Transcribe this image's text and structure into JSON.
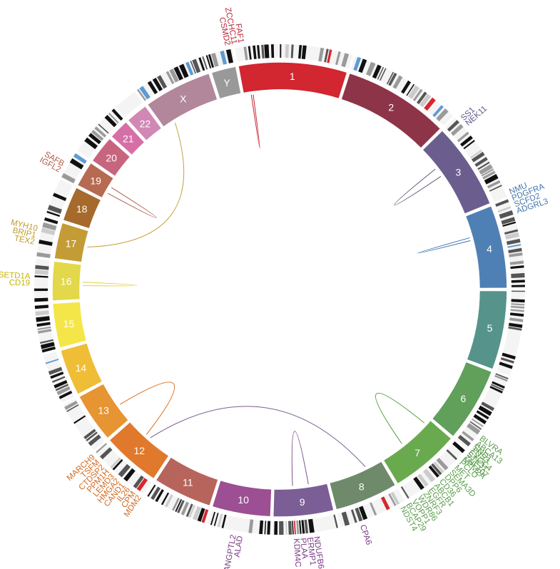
{
  "chromosomes": [
    {
      "name": "1",
      "color": "#d22630",
      "size": 248
    },
    {
      "name": "2",
      "color": "#8e3448",
      "size": 242
    },
    {
      "name": "3",
      "color": "#6b5e8f",
      "size": 198
    },
    {
      "name": "4",
      "color": "#4f80b5",
      "size": 190
    },
    {
      "name": "5",
      "color": "#56948b",
      "size": 181
    },
    {
      "name": "6",
      "color": "#60a05a",
      "size": 171
    },
    {
      "name": "7",
      "color": "#6aaa4f",
      "size": 159
    },
    {
      "name": "8",
      "color": "#6e8a6b",
      "size": 145
    },
    {
      "name": "9",
      "color": "#7c5e96",
      "size": 138
    },
    {
      "name": "10",
      "color": "#9c4f92",
      "size": 134
    },
    {
      "name": "11",
      "color": "#b7655c",
      "size": 135
    },
    {
      "name": "12",
      "color": "#e0792c",
      "size": 133
    },
    {
      "name": "13",
      "color": "#e79433",
      "size": 114
    },
    {
      "name": "14",
      "color": "#efbe36",
      "size": 107
    },
    {
      "name": "15",
      "color": "#f4e649",
      "size": 102
    },
    {
      "name": "16",
      "color": "#e2d84a",
      "size": 90
    },
    {
      "name": "17",
      "color": "#c49c36",
      "size": 83
    },
    {
      "name": "18",
      "color": "#a56a2c",
      "size": 80
    },
    {
      "name": "19",
      "color": "#b66a52",
      "size": 59
    },
    {
      "name": "20",
      "color": "#c8657e",
      "size": 64
    },
    {
      "name": "21",
      "color": "#d76fa7",
      "size": 47
    },
    {
      "name": "22",
      "color": "#d188b4",
      "size": 51
    },
    {
      "name": "X",
      "color": "#b2879b",
      "size": 156
    },
    {
      "name": "Y",
      "color": "#999999",
      "size": 57
    }
  ],
  "gene_labels": [
    {
      "chr": "1",
      "pos": 0.0,
      "color": "#b82a38",
      "genes": [
        "CSMD2",
        "ZCCHC11",
        "FAF1"
      ]
    },
    {
      "chr": "3",
      "pos": 0.1,
      "color": "#5e5789",
      "genes": [
        "SS1",
        "NEK11"
      ]
    },
    {
      "chr": "4",
      "pos": 0.05,
      "color": "#4375ab",
      "genes": [
        "NMU",
        "PDGFRA",
        "SCFD2",
        "ADGRL3"
      ]
    },
    {
      "chr": "6",
      "pos": 0.96,
      "color": "#5a9c4b",
      "genes": [
        "BLVRA",
        "ABCA13",
        "TNS3",
        "STK31",
        "NPM2A"
      ]
    },
    {
      "chr": "7",
      "pos": 0.5,
      "color": "#5a9c4b",
      "genes": [
        "SND1",
        "EXOC4",
        "ZNF107",
        "PCLO",
        "MET",
        "SEMA3D",
        "DPP6",
        "CD36",
        "ABCB1",
        "EGFR",
        "ZNRF3",
        "WDR86",
        "VOPP1",
        "BCAP29",
        "NDST4"
      ]
    },
    {
      "chr": "8",
      "pos": 0.7,
      "color": "#7a3c86",
      "genes": [
        "CPA6"
      ]
    },
    {
      "chr": "9",
      "pos": 0.5,
      "color": "#7a3c86",
      "genes": [
        "NDUFB6",
        "ERMP1",
        "PLAA",
        "KDM4C"
      ]
    },
    {
      "chr": "10",
      "pos": 0.5,
      "color": "#7a3c86",
      "genes": [
        "ALAD",
        "ANGPTL2"
      ]
    },
    {
      "chr": "12",
      "pos": 0.5,
      "color": "#d2691e",
      "genes": [
        "MDM2",
        "CPM",
        "IL26",
        "CAND1",
        "HMGA2",
        "LEMD3",
        "PPM1H",
        "CTDSP2",
        "TSFM",
        "MARCH9"
      ]
    },
    {
      "chr": "16",
      "pos": 0.5,
      "color": "#c9b400",
      "genes": [
        "CD19",
        "SETD1A"
      ]
    },
    {
      "chr": "17",
      "pos": 0.5,
      "color": "#c09a2a",
      "genes": [
        "TEX2",
        "BRIP1",
        "MYH10"
      ]
    },
    {
      "chr": "19",
      "pos": 0.3,
      "color": "#b05a44",
      "genes": [
        "IGFL2",
        "SAFB"
      ]
    }
  ],
  "links": [
    {
      "chr1": "1",
      "pos1": 0.08,
      "chr2": "1",
      "pos2": 0.1,
      "color": "#c8202f"
    },
    {
      "chr1": "3",
      "pos1": 0.3,
      "chr2": "3",
      "pos2": 0.42,
      "color": "#5b5a7a"
    },
    {
      "chr1": "4",
      "pos1": 0.3,
      "chr2": "4",
      "pos2": 0.34,
      "color": "#3a72b0"
    },
    {
      "chr1": "7",
      "pos1": 0.1,
      "chr2": "7",
      "pos2": 0.6,
      "color": "#5aa040"
    },
    {
      "chr1": "9",
      "pos1": 0.35,
      "chr2": "9",
      "pos2": 0.65,
      "color": "#7a4f91"
    },
    {
      "chr1": "8",
      "pos1": 0.3,
      "chr2": "12",
      "pos2": 0.5,
      "color": "#7a5e90"
    },
    {
      "chr1": "12",
      "pos1": 0.6,
      "chr2": "13",
      "pos2": 0.4,
      "color": "#dc6d1c"
    },
    {
      "chr1": "16",
      "pos1": 0.4,
      "chr2": "16",
      "pos2": 0.5,
      "color": "#e3d23a"
    },
    {
      "chr1": "17",
      "pos1": 0.5,
      "chr2": "X",
      "pos2": 0.2,
      "color": "#c6a13a"
    },
    {
      "chr1": "19",
      "pos1": 0.3,
      "chr2": "19",
      "pos2": 0.6,
      "color": "#a85c4d"
    }
  ]
}
